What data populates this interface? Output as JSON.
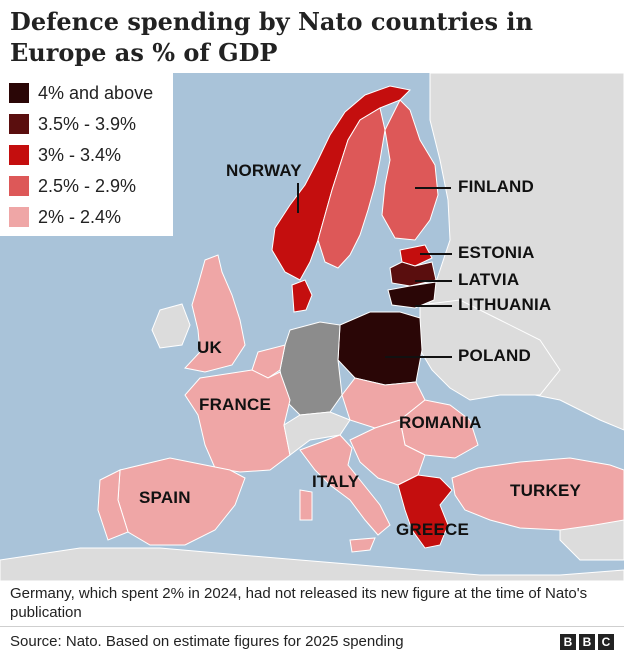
{
  "title": "Defence spending by Nato countries in Europe as % of GDP",
  "legend": [
    {
      "label": "4% and above",
      "color": "#2a0606"
    },
    {
      "label": "3.5% - 3.9%",
      "color": "#5a0e0e"
    },
    {
      "label": "3% - 3.4%",
      "color": "#c40e0e"
    },
    {
      "label": "2.5% - 2.9%",
      "color": "#dd5858"
    },
    {
      "label": "2% - 2.4%",
      "color": "#efa6a6"
    }
  ],
  "countries": {
    "norway": "NORWAY",
    "finland": "FINLAND",
    "estonia": "ESTONIA",
    "latvia": "LATVIA",
    "lithuania": "LITHUANIA",
    "poland": "POLAND",
    "uk": "UK",
    "france": "FRANCE",
    "romania": "ROMANIA",
    "italy": "ITALY",
    "spain": "SPAIN",
    "turkey": "TURKEY",
    "greece": "GREECE"
  },
  "footnote": "Germany, which spent 2% in 2024, had not released its new figure at the time of Nato's publication",
  "source": "Source: Nato. Based on estimate figures for 2025 spending",
  "logo": [
    "B",
    "B",
    "C"
  ]
}
